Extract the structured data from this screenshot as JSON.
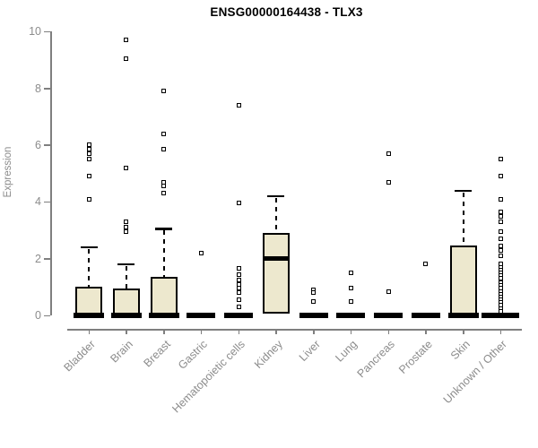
{
  "colors": {
    "box_fill": "#ede8ce",
    "box_border": "#000000",
    "median": "#000000",
    "outlier_fill": "#ffffff",
    "axis": "#7f7f7f",
    "tick_label": "#8c8c8c",
    "title": "#000000",
    "background": "#ffffff"
  },
  "chart_data": {
    "type": "boxplot",
    "title": "ENSG00000164438 - TLX3",
    "ylabel": "Expression",
    "xlabel": "",
    "ylim": [
      0,
      10
    ],
    "yticks": [
      0,
      2,
      4,
      6,
      8,
      10
    ],
    "grid": false,
    "legend": false,
    "categories": [
      "Bladder",
      "Brain",
      "Breast",
      "Gastric",
      "Hematopoietic cells",
      "Kidney",
      "Liver",
      "Lung",
      "Pancreas",
      "Prostate",
      "Skin",
      "Unknown / Other"
    ],
    "series": [
      {
        "name": "Bladder",
        "q1": 0,
        "median": 0,
        "q3": 1.0,
        "whisker_low": 0,
        "whisker_high": 2.4,
        "outliers": [
          6.0,
          5.85,
          5.7,
          5.5,
          4.9,
          4.1
        ]
      },
      {
        "name": "Brain",
        "q1": 0,
        "median": 0,
        "q3": 0.95,
        "whisker_low": 0,
        "whisker_high": 1.8,
        "outliers": [
          9.7,
          9.05,
          5.2,
          3.3,
          3.1,
          2.95
        ]
      },
      {
        "name": "Breast",
        "q1": 0,
        "median": 0,
        "q3": 1.35,
        "whisker_low": 0,
        "whisker_high": 3.05,
        "outliers": [
          7.9,
          6.4,
          5.85,
          4.7,
          4.55,
          4.3
        ]
      },
      {
        "name": "Gastric",
        "q1": 0,
        "median": 0,
        "q3": 0,
        "whisker_low": 0,
        "whisker_high": 0,
        "outliers": [
          2.2
        ]
      },
      {
        "name": "Hematopoietic cells",
        "q1": 0,
        "median": 0,
        "q3": 0,
        "whisker_low": 0,
        "whisker_high": 0,
        "outliers": [
          7.4,
          3.95,
          1.65,
          1.45,
          1.25,
          1.1,
          0.95,
          0.8,
          0.55,
          0.3
        ]
      },
      {
        "name": "Kidney",
        "q1": 0.05,
        "median": 2.0,
        "q3": 2.9,
        "whisker_low": 0,
        "whisker_high": 4.2,
        "outliers": []
      },
      {
        "name": "Liver",
        "q1": 0,
        "median": 0,
        "q3": 0,
        "whisker_low": 0,
        "whisker_high": 0,
        "outliers": [
          0.9,
          0.8,
          0.5
        ]
      },
      {
        "name": "Lung",
        "q1": 0,
        "median": 0,
        "q3": 0,
        "whisker_low": 0,
        "whisker_high": 0,
        "outliers": [
          1.5,
          0.95,
          0.5
        ]
      },
      {
        "name": "Pancreas",
        "q1": 0,
        "median": 0,
        "q3": 0,
        "whisker_low": 0,
        "whisker_high": 0,
        "outliers": [
          5.7,
          4.7,
          0.85
        ]
      },
      {
        "name": "Prostate",
        "q1": 0,
        "median": 0,
        "q3": 0,
        "whisker_low": 0,
        "whisker_high": 0,
        "outliers": [
          1.8
        ]
      },
      {
        "name": "Skin",
        "q1": 0,
        "median": 0,
        "q3": 2.45,
        "whisker_low": 0,
        "whisker_high": 4.4,
        "outliers": []
      },
      {
        "name": "Unknown / Other",
        "q1": 0,
        "median": 0,
        "q3": 0,
        "whisker_low": 0,
        "whisker_high": 0,
        "outliers": [
          5.5,
          4.9,
          4.1,
          3.65,
          3.5,
          3.3,
          2.95,
          2.7,
          2.45,
          2.3,
          2.1,
          1.8,
          1.7,
          1.6,
          1.5,
          1.4,
          1.3,
          1.15,
          1.05,
          0.95,
          0.85,
          0.75,
          0.65,
          0.55,
          0.45,
          0.35,
          0.25,
          0.15
        ]
      }
    ]
  }
}
